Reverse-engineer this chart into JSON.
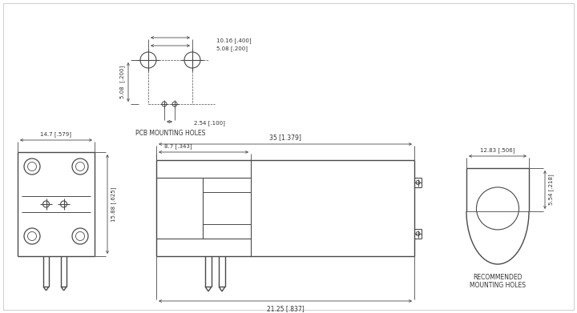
{
  "bg_color": "#ffffff",
  "line_color": "#4a4a4a",
  "dim_color": "#4a4a4a",
  "text_color": "#333333",
  "lw": 1.0,
  "dim_lw": 0.6,
  "pcb_title": "PCB MOUNTING HOLES",
  "reco_title": "RECOMMENDED\nMOUNTING HOLES",
  "dim_labels": {
    "pcb_h": "5.08  [.200]",
    "pcb_w1": "10.16 [.400]",
    "pcb_w2": "5.08 [.200]",
    "pcb_pin": "2.54 [.100]",
    "front_w": "14.7 [.579]",
    "front_h": "15.88 [.625]",
    "side_w1": "35 [1.379]",
    "side_w2": "8.7 [.343]",
    "side_bot": "21.25 [.837]",
    "reco_w": "12.83 [.506]",
    "reco_h": "5.54 [.218]"
  }
}
